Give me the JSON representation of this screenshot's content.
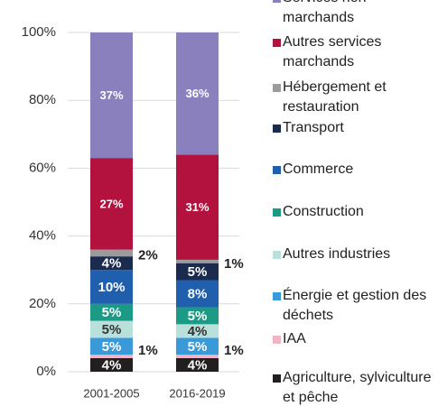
{
  "chart_data": {
    "type": "stacked_bar",
    "categories": [
      "2001-2005",
      "2016-2019"
    ],
    "series": [
      {
        "name": "Agriculture, sylviculture et pêche",
        "color": "#231f20",
        "values": [
          4,
          4
        ],
        "value_labels": [
          "4%",
          "4%"
        ]
      },
      {
        "name": "IAA",
        "color": "#f2b5c4",
        "values": [
          1,
          1
        ],
        "value_labels": [
          "1%",
          "1%"
        ]
      },
      {
        "name": "Énergie et gestion des déchets",
        "color": "#3a9ad9",
        "values": [
          5,
          5
        ],
        "value_labels": [
          "5%",
          "5%"
        ]
      },
      {
        "name": "Autres industries",
        "color": "#b9e0da",
        "values": [
          5,
          4
        ],
        "value_labels": [
          "5%",
          "4%"
        ]
      },
      {
        "name": "Construction",
        "color": "#1b9a85",
        "values": [
          5,
          5
        ],
        "value_labels": [
          "5%",
          "5%"
        ]
      },
      {
        "name": "Commerce",
        "color": "#1f5fae",
        "values": [
          10,
          8
        ],
        "value_labels": [
          "10%",
          "8%"
        ]
      },
      {
        "name": "Transport",
        "color": "#1b2b4e",
        "values": [
          4,
          5
        ],
        "value_labels": [
          "4%",
          "5%"
        ]
      },
      {
        "name": "Hébergement et restauration",
        "color": "#9b9b9b",
        "values": [
          2,
          1
        ],
        "value_labels": [
          "2%",
          "1%"
        ]
      },
      {
        "name": "Autres services marchands",
        "color": "#b3123f",
        "values": [
          27,
          31
        ],
        "value_labels": [
          "27%",
          "31%"
        ]
      },
      {
        "name": "Services non marchands",
        "color": "#8a80bd",
        "values": [
          37,
          36
        ],
        "value_labels": [
          "37%",
          "36%"
        ]
      }
    ],
    "ylim": [
      0,
      100
    ],
    "yticks": [
      {
        "value": 0,
        "label": "0%"
      },
      {
        "value": 20,
        "label": "20%"
      },
      {
        "value": 40,
        "label": "40%"
      },
      {
        "value": 60,
        "label": "60%"
      },
      {
        "value": 80,
        "label": "80%"
      },
      {
        "value": 100,
        "label": "100%"
      }
    ],
    "grid": true
  }
}
